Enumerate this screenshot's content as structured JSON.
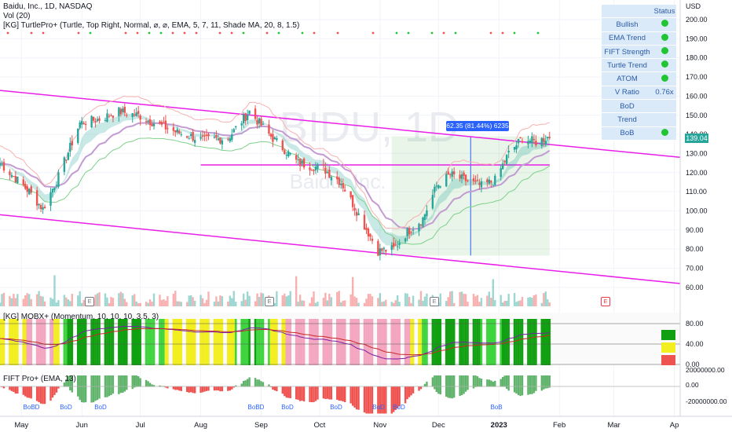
{
  "legend": {
    "main": "Baidu, Inc., 1D, NASDAQ",
    "volume": "Vol (20)",
    "indicator": "[KG] TurtlePro+ (Turtle, Top Right, Normal, ⌀, ⌀, EMA, 5, 7, 11, Shade MA, 20, 8, 1.5)",
    "pane2": "[KG] MOBX+ (Momentum, 10, 10, 10, 3.5, 3)",
    "pane3": "FIFT Pro+ (EMA, 13)"
  },
  "watermark": {
    "symbol": "BIDU, 1D",
    "name": "Baidu, Inc."
  },
  "status_panel": {
    "header": "Status",
    "rows": [
      {
        "label": "Bullish",
        "value": "",
        "dot": true
      },
      {
        "label": "EMA Trend",
        "value": "",
        "dot": true
      },
      {
        "label": "FIFT Strength",
        "value": "",
        "dot": true
      },
      {
        "label": "Turtle Trend",
        "value": "",
        "dot": true
      },
      {
        "label": "ATOM",
        "value": "",
        "dot": true
      },
      {
        "label": "V Ratio",
        "value": "0.76x",
        "dot": false
      },
      {
        "label": "BoD",
        "value": "",
        "dot": false
      },
      {
        "label": "Trend",
        "value": "",
        "dot": false
      },
      {
        "label": "BoB",
        "value": "",
        "dot": true
      }
    ]
  },
  "measure_label": "62.35 (81.44%) 6235",
  "current_price": "139.04",
  "colors": {
    "up": "#26a69a",
    "down": "#ef5350",
    "channel": "#e91ee9",
    "status_dot": "#21c432",
    "status_bg": "#dbeaf8"
  },
  "chart_data": {
    "type": "candlestick",
    "y_unit": "USD",
    "price_axis_ticks": [
      "200.00",
      "190.00",
      "180.00",
      "170.00",
      "160.00",
      "150.00",
      "140.00",
      "130.00",
      "120.00",
      "110.00",
      "100.00",
      "90.00",
      "80.00",
      "70.00",
      "60.00"
    ],
    "time_axis_ticks": [
      "May",
      "Jun",
      "Jul",
      "Aug",
      "Sep",
      "Oct",
      "Nov",
      "Dec",
      "2023",
      "Feb",
      "Mar",
      "Ap"
    ],
    "price_ylim": [
      55,
      207
    ],
    "close_path": [
      {
        "date": "2022-04-20",
        "close": 125
      },
      {
        "date": "2022-05-05",
        "close": 110
      },
      {
        "date": "2022-05-12",
        "close": 101
      },
      {
        "date": "2022-05-20",
        "close": 118
      },
      {
        "date": "2022-05-31",
        "close": 146
      },
      {
        "date": "2022-06-10",
        "close": 148
      },
      {
        "date": "2022-06-20",
        "close": 152
      },
      {
        "date": "2022-06-30",
        "close": 150
      },
      {
        "date": "2022-07-08",
        "close": 146
      },
      {
        "date": "2022-07-20",
        "close": 141
      },
      {
        "date": "2022-08-02",
        "close": 137
      },
      {
        "date": "2022-08-15",
        "close": 138
      },
      {
        "date": "2022-08-26",
        "close": 152
      },
      {
        "date": "2022-09-05",
        "close": 140
      },
      {
        "date": "2022-09-20",
        "close": 125
      },
      {
        "date": "2022-10-03",
        "close": 122
      },
      {
        "date": "2022-10-12",
        "close": 115
      },
      {
        "date": "2022-10-20",
        "close": 100
      },
      {
        "date": "2022-10-31",
        "close": 79
      },
      {
        "date": "2022-11-08",
        "close": 80
      },
      {
        "date": "2022-11-15",
        "close": 89
      },
      {
        "date": "2022-11-23",
        "close": 96
      },
      {
        "date": "2022-11-30",
        "close": 113
      },
      {
        "date": "2022-12-07",
        "close": 119
      },
      {
        "date": "2022-12-15",
        "close": 116
      },
      {
        "date": "2022-12-23",
        "close": 113
      },
      {
        "date": "2022-12-30",
        "close": 116
      },
      {
        "date": "2023-01-06",
        "close": 130
      },
      {
        "date": "2023-01-13",
        "close": 138
      },
      {
        "date": "2023-01-20",
        "close": 136
      },
      {
        "date": "2023-01-27",
        "close": 139
      }
    ],
    "horizontal_level": 124,
    "measure": {
      "from": 76.6,
      "to": 139.0,
      "change": "62.35",
      "percent": "81.44%"
    },
    "mobx_ticks": [
      "80.00",
      "40.00",
      "0.00"
    ],
    "fift_ticks": [
      "20000000.00",
      "0.00",
      "-20000000.00"
    ],
    "signal_labels": [
      "BoBD",
      "BoD",
      "BoD",
      "BoBD",
      "BoD",
      "BoD",
      "BoD",
      "BoD",
      "BoB"
    ]
  }
}
